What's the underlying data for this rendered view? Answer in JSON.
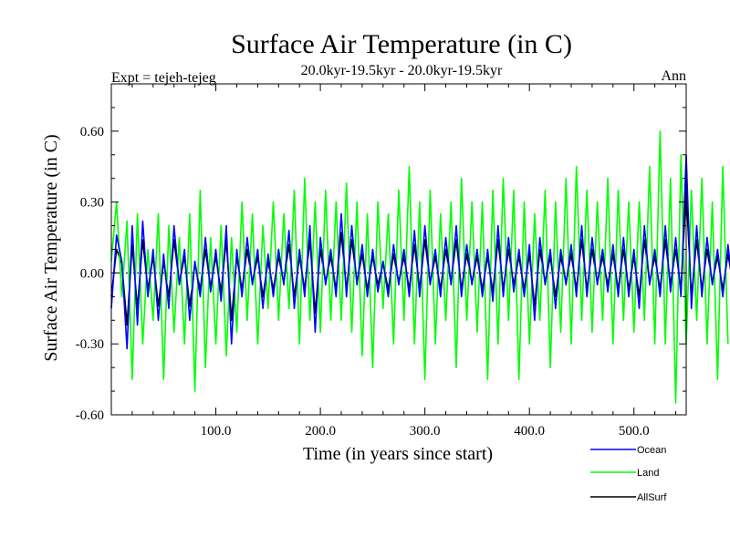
{
  "chart_data": {
    "type": "line",
    "title": "Surface Air Temperature (in C)",
    "subtitle": "20.0kyr-19.5kyr - 20.0kyr-19.5kyr",
    "left_label": "Expt = tejeh-tejeg",
    "right_label": "Ann",
    "xlabel": "Time (in years since start)",
    "ylabel": "Surface Air Temperature (in C)",
    "xlim": [
      0,
      550
    ],
    "ylim": [
      -0.6,
      0.8
    ],
    "xticks": [
      {
        "value": 100,
        "label": "100.0"
      },
      {
        "value": 200,
        "label": "200.0"
      },
      {
        "value": 300,
        "label": "300.0"
      },
      {
        "value": 400,
        "label": "400.0"
      },
      {
        "value": 500,
        "label": "500.0"
      }
    ],
    "yticks": [
      {
        "value": -0.6,
        "label": "-0.60"
      },
      {
        "value": -0.3,
        "label": "-0.30"
      },
      {
        "value": 0.0,
        "label": "0.00"
      },
      {
        "value": 0.3,
        "label": "0.30"
      },
      {
        "value": 0.6,
        "label": "0.60"
      }
    ],
    "zero_line": true,
    "series_draw_order": [
      "AllSurf",
      "Land",
      "Ocean"
    ],
    "series": [
      {
        "name": "Ocean",
        "color": "#0000ff",
        "x_start": 0,
        "x_step": 5,
        "values": [
          -0.15,
          0.16,
          0.05,
          -0.32,
          0.2,
          -0.22,
          0.22,
          -0.1,
          0.1,
          -0.2,
          0.08,
          -0.15,
          0.2,
          -0.05,
          0.1,
          -0.2,
          0.05,
          -0.1,
          0.15,
          -0.08,
          0.1,
          -0.12,
          0.2,
          -0.3,
          0.1,
          -0.1,
          0.15,
          -0.05,
          0.1,
          -0.15,
          0.08,
          -0.1,
          0.1,
          -0.05,
          0.18,
          -0.15,
          0.1,
          -0.1,
          0.2,
          -0.25,
          0.15,
          -0.05,
          0.1,
          -0.1,
          0.25,
          -0.1,
          0.2,
          -0.05,
          0.12,
          -0.1,
          0.1,
          -0.08,
          0.05,
          -0.1,
          0.12,
          -0.05,
          0.1,
          -0.1,
          0.18,
          -0.1,
          0.2,
          -0.05,
          0.1,
          -0.1,
          0.15,
          -0.05,
          0.2,
          -0.1,
          0.12,
          -0.05,
          0.1,
          -0.1,
          0.1,
          -0.12,
          0.2,
          -0.1,
          0.15,
          -0.08,
          0.1,
          -0.1,
          0.12,
          -0.2,
          0.15,
          -0.05,
          0.1,
          -0.15,
          0.1,
          -0.05,
          0.12,
          -0.1,
          0.2,
          -0.1,
          0.15,
          -0.05,
          0.1,
          -0.08,
          0.12,
          -0.1,
          0.15,
          -0.1,
          0.1,
          -0.15,
          0.2,
          -0.05,
          0.1,
          -0.1,
          0.2,
          -0.08,
          0.15,
          -0.1,
          0.5,
          -0.15,
          0.2,
          -0.1,
          0.15,
          -0.05,
          0.1,
          -0.1,
          0.12,
          -0.08,
          0.1
        ]
      },
      {
        "name": "Land",
        "color": "#00ff00",
        "x_start": 0,
        "x_step": 5,
        "values": [
          0.05,
          0.3,
          -0.1,
          0.22,
          -0.45,
          0.25,
          -0.3,
          0.1,
          -0.2,
          0.25,
          -0.45,
          0.2,
          -0.25,
          0.15,
          -0.3,
          0.25,
          -0.5,
          0.35,
          -0.4,
          0.15,
          -0.3,
          0.2,
          -0.35,
          0.15,
          -0.25,
          0.3,
          -0.2,
          0.25,
          -0.3,
          0.2,
          -0.15,
          0.3,
          -0.2,
          0.25,
          -0.15,
          0.35,
          -0.3,
          0.4,
          -0.2,
          0.3,
          -0.25,
          0.35,
          -0.2,
          0.3,
          -0.2,
          0.38,
          -0.25,
          0.3,
          -0.35,
          0.25,
          -0.4,
          0.3,
          -0.15,
          0.25,
          -0.3,
          0.35,
          -0.2,
          0.45,
          -0.3,
          0.3,
          -0.45,
          0.35,
          -0.3,
          0.25,
          -0.2,
          0.3,
          -0.4,
          0.4,
          -0.2,
          0.3,
          -0.25,
          0.3,
          -0.45,
          0.35,
          -0.3,
          0.4,
          -0.2,
          0.35,
          -0.45,
          0.3,
          -0.3,
          0.25,
          -0.2,
          0.35,
          -0.4,
          0.3,
          -0.25,
          0.4,
          -0.3,
          0.45,
          -0.2,
          0.35,
          -0.25,
          0.3,
          -0.2,
          0.4,
          -0.3,
          0.35,
          -0.2,
          0.3,
          -0.25,
          0.3,
          -0.2,
          0.45,
          -0.3,
          0.6,
          -0.3,
          0.4,
          -0.55,
          0.5,
          -0.3,
          0.35,
          -0.2,
          0.4,
          -0.3,
          0.3,
          -0.45,
          0.45,
          -0.3
        ]
      },
      {
        "name": "AllSurf",
        "color": "#000000",
        "x_start": 0,
        "x_step": 5,
        "values": [
          -0.1,
          0.1,
          0.04,
          -0.22,
          0.12,
          -0.15,
          0.14,
          -0.07,
          0.07,
          -0.14,
          0.05,
          -0.1,
          0.14,
          -0.04,
          0.07,
          -0.14,
          0.04,
          -0.07,
          0.1,
          -0.06,
          0.07,
          -0.08,
          0.14,
          -0.2,
          0.07,
          -0.07,
          0.1,
          -0.04,
          0.07,
          -0.1,
          0.05,
          -0.07,
          0.07,
          -0.04,
          0.12,
          -0.1,
          0.07,
          -0.07,
          0.14,
          -0.17,
          0.1,
          -0.04,
          0.07,
          -0.07,
          0.17,
          -0.07,
          0.14,
          -0.04,
          0.08,
          -0.07,
          0.07,
          -0.05,
          0.04,
          -0.07,
          0.08,
          -0.04,
          0.07,
          -0.07,
          0.12,
          -0.07,
          0.14,
          -0.04,
          0.07,
          -0.07,
          0.1,
          -0.04,
          0.14,
          -0.07,
          0.08,
          -0.04,
          0.07,
          -0.07,
          0.07,
          -0.08,
          0.14,
          -0.07,
          0.1,
          -0.05,
          0.07,
          -0.07,
          0.08,
          -0.14,
          0.1,
          -0.04,
          0.07,
          -0.1,
          0.07,
          -0.04,
          0.08,
          -0.07,
          0.14,
          -0.07,
          0.1,
          -0.04,
          0.07,
          -0.05,
          0.08,
          -0.07,
          0.1,
          -0.07,
          0.07,
          -0.1,
          0.14,
          -0.04,
          0.07,
          -0.07,
          0.14,
          -0.05,
          0.1,
          -0.07,
          0.35,
          -0.1,
          0.14,
          -0.07,
          0.1,
          -0.04,
          0.07,
          -0.07,
          0.08,
          -0.05,
          0.07
        ]
      }
    ],
    "legend": {
      "placement": "bottom-right",
      "entries": [
        {
          "label": "Ocean",
          "color": "#0000ff"
        },
        {
          "label": "Land",
          "color": "#00ff00"
        },
        {
          "label": "AllSurf",
          "color": "#000000"
        }
      ]
    }
  }
}
